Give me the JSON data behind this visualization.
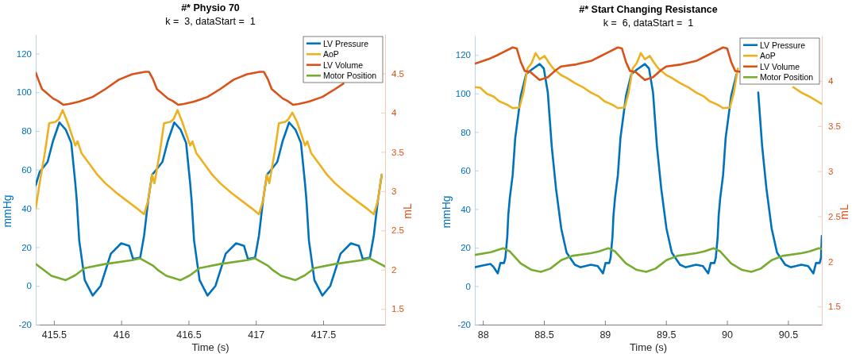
{
  "chart_data": [
    {
      "type": "line",
      "title": "#* Physio 70",
      "subtitle": "k =  3, dataStart =  1",
      "xlabel": "Time (s)",
      "ylabel": "mmHg",
      "y2label": "mL",
      "xlim": [
        415.365,
        417.96
      ],
      "xticks": [
        415.5,
        416,
        416.5,
        417,
        417.5
      ],
      "ylim": [
        -20,
        130
      ],
      "yticks": [
        -20,
        0,
        20,
        40,
        60,
        80,
        100,
        120
      ],
      "y2lim": [
        1.3,
        5
      ],
      "y2ticks": [
        1.5,
        2,
        2.5,
        3,
        3.5,
        4,
        4.5
      ],
      "legend": "top right",
      "series": [
        {
          "name": "LV Pressure",
          "color": "#0072bd",
          "x": [
            415.365,
            415.394,
            415.453,
            415.494,
            415.541,
            415.588,
            415.629,
            415.659,
            415.67,
            415.688,
            415.729,
            415.788,
            415.847,
            415.923,
            416.0,
            416.059,
            416.088,
            416.141,
            416.17,
            416.2,
            416.229,
            416.247,
            416.306,
            416.347,
            416.394,
            416.441,
            416.482,
            416.512,
            416.523,
            416.541,
            416.582,
            416.641,
            416.7,
            416.776,
            416.853,
            416.912,
            416.941,
            416.994,
            417.023,
            417.053,
            417.082,
            417.1,
            417.159,
            417.2,
            417.247,
            417.294,
            417.335,
            417.365,
            417.376,
            417.394,
            417.435,
            417.494,
            417.553,
            417.629,
            417.706,
            417.765,
            417.794,
            417.847,
            417.876,
            417.906,
            417.935
          ],
          "values": [
            52,
            58.8,
            64,
            75,
            84.4,
            80.7,
            73.8,
            53,
            44,
            23.5,
            3,
            -5,
            0,
            16.6,
            22,
            20.7,
            13.9,
            14.6,
            26,
            44,
            57.4,
            58.8,
            64,
            75,
            84.4,
            80.7,
            73.8,
            53,
            44,
            23.5,
            3,
            -5,
            0,
            16.6,
            22,
            20.7,
            13.9,
            14.6,
            26,
            44,
            57.4,
            58.8,
            64,
            75,
            84.4,
            80.7,
            73.8,
            53,
            44,
            23.5,
            3,
            -5,
            0,
            16.6,
            22,
            20.7,
            13.9,
            14.6,
            26,
            44,
            57.4
          ]
        },
        {
          "name": "AoP",
          "color": "#edb120",
          "x": [
            415.365,
            415.394,
            415.435,
            415.465,
            415.512,
            415.535,
            415.565,
            415.6,
            415.659,
            415.676,
            415.706,
            415.765,
            415.823,
            415.882,
            415.965,
            416.041,
            416.117,
            416.17,
            416.2,
            416.229,
            416.247,
            416.288,
            416.318,
            416.365,
            416.388,
            416.418,
            416.453,
            416.512,
            416.529,
            416.559,
            416.618,
            416.676,
            416.735,
            416.818,
            416.894,
            416.97,
            417.023,
            417.053,
            417.082,
            417.1,
            417.141,
            417.171,
            417.218,
            417.241,
            417.271,
            417.306,
            417.365,
            417.382,
            417.412,
            417.471,
            417.529,
            417.588,
            417.671,
            417.747,
            417.823,
            417.876,
            417.906,
            417.935
          ],
          "values": [
            40,
            53,
            69.7,
            84,
            84.7,
            86,
            90.8,
            84.7,
            72.5,
            74.6,
            68.4,
            62.9,
            57.4,
            53,
            48,
            44,
            40,
            37,
            44,
            57.4,
            53,
            69.7,
            84,
            84.7,
            86,
            90.8,
            84.7,
            72.5,
            74.6,
            68.4,
            62.9,
            57.4,
            53,
            48,
            44,
            40,
            37,
            44,
            57.4,
            53,
            69.7,
            84,
            84.7,
            86,
            89.5,
            84.7,
            72.5,
            74.6,
            68.4,
            62.9,
            57.4,
            53,
            48,
            44,
            40,
            37,
            44,
            57.4
          ]
        },
        {
          "name": "LV Volume",
          "color": "#d95319",
          "axis": "y2",
          "x": [
            415.365,
            415.382,
            415.412,
            415.494,
            415.529,
            415.57,
            415.612,
            415.688,
            415.788,
            415.882,
            415.982,
            416.082,
            416.176,
            416.206,
            416.235,
            416.265,
            416.347,
            416.382,
            416.423,
            416.465,
            416.541,
            416.641,
            416.735,
            416.835,
            416.935,
            417.029,
            417.059,
            417.088,
            417.118,
            417.2,
            417.235,
            417.276,
            417.318,
            417.394,
            417.494,
            417.588,
            417.65
          ],
          "values": [
            4.51,
            4.43,
            4.3,
            4.18,
            4.15,
            4.1,
            4.11,
            4.14,
            4.2,
            4.3,
            4.42,
            4.49,
            4.52,
            4.52,
            4.43,
            4.3,
            4.18,
            4.15,
            4.1,
            4.11,
            4.14,
            4.2,
            4.3,
            4.42,
            4.49,
            4.52,
            4.52,
            4.43,
            4.3,
            4.18,
            4.15,
            4.1,
            4.11,
            4.14,
            4.2,
            4.3,
            4.37
          ]
        },
        {
          "name": "Motor Position",
          "color": "#77ac30",
          "x": [
            415.365,
            415.482,
            415.588,
            415.659,
            415.729,
            415.882,
            416.082,
            416.141,
            416.235,
            416.276,
            416.335,
            416.441,
            416.512,
            416.582,
            416.735,
            416.935,
            416.994,
            417.088,
            417.129,
            417.188,
            417.294,
            417.365,
            417.435,
            417.588,
            417.788,
            417.847,
            417.96
          ],
          "values": [
            11.3,
            5.2,
            3,
            5.5,
            9.2,
            11.3,
            13.3,
            14.2,
            10.5,
            8,
            5.2,
            3,
            5.5,
            9.2,
            11.3,
            13.3,
            14.2,
            10.5,
            8,
            5.2,
            3,
            5.5,
            9.2,
            11.3,
            13.3,
            14.2,
            10
          ]
        }
      ]
    },
    {
      "type": "line",
      "title": "#* Start Changing Resistance",
      "subtitle": "k =  6, dataStart =  1",
      "xlabel": "Time (s)",
      "ylabel": "mmHg",
      "y2label": "mL",
      "xlim": [
        87.934,
        90.777
      ],
      "xticks": [
        88,
        88.5,
        89,
        89.5,
        90,
        90.5
      ],
      "ylim": [
        -20,
        130
      ],
      "yticks": [
        -20,
        0,
        20,
        40,
        60,
        80,
        100,
        120
      ],
      "y2lim": [
        1.3,
        4.5
      ],
      "y2ticks": [
        1.5,
        2,
        2.5,
        3,
        3.5,
        4
      ],
      "legend": "top right",
      "series": [
        {
          "name": "LV Pressure",
          "color": "#0072bd",
          "x": [
            87.934,
            87.998,
            88.063,
            88.089,
            88.122,
            88.143,
            88.173,
            88.184,
            88.2,
            88.208,
            88.221,
            88.244,
            88.265,
            88.311,
            88.354,
            88.397,
            88.465,
            88.499,
            88.532,
            88.564,
            88.599,
            88.642,
            88.686,
            88.753,
            88.798,
            88.885,
            88.941,
            88.984,
            89.005,
            89.035,
            89.046,
            89.062,
            89.07,
            89.083,
            89.106,
            89.127,
            89.173,
            89.216,
            89.259,
            89.327,
            89.361,
            89.394,
            89.426,
            89.461,
            89.504,
            89.548,
            89.615,
            89.66,
            89.747,
            89.803,
            89.846,
            89.867,
            89.897,
            89.908,
            89.924,
            89.932,
            89.945,
            89.968,
            89.989,
            90.035,
            90.078,
            90.121,
            90.189,
            90.223,
            90.256,
            90.288,
            90.323,
            90.366,
            90.41,
            90.477,
            90.522,
            90.609,
            90.665,
            90.708,
            90.729,
            90.759,
            90.77,
            90.777
          ],
          "values": [
            9.8,
            10.7,
            11.5,
            9.8,
            6.6,
            12,
            12,
            14.6,
            25.8,
            36.8,
            46,
            57.6,
            76.9,
            99,
            110,
            112.3,
            115.3,
            113,
            100.5,
            72.7,
            50.7,
            29.9,
            17.4,
            11.1,
            9.8,
            11.1,
            10.4,
            6.6,
            12,
            12,
            14.6,
            25.8,
            36.8,
            46,
            57.6,
            76.9,
            99,
            110,
            112.3,
            115.3,
            113,
            100.5,
            72.7,
            50.7,
            29.9,
            17.4,
            11.1,
            9.8,
            11.1,
            10.4,
            6.6,
            12,
            12,
            14.6,
            25.8,
            36.8,
            46,
            57.6,
            76.9,
            99,
            110,
            null,
            null,
            null,
            100.5,
            72.7,
            50.7,
            29.9,
            17.4,
            11.1,
            9.8,
            11.1,
            10.4,
            6.6,
            12,
            12,
            14.6,
            26
          ]
        },
        {
          "name": "AoP",
          "color": "#edb120",
          "x": [
            87.934,
            87.978,
            88.033,
            88.089,
            88.133,
            88.199,
            88.244,
            88.3,
            88.332,
            88.365,
            88.399,
            88.432,
            88.465,
            88.505,
            88.543,
            88.576,
            88.642,
            88.686,
            88.753,
            88.819,
            88.885,
            88.951,
            88.995,
            89.061,
            89.106,
            89.162,
            89.194,
            89.227,
            89.261,
            89.294,
            89.327,
            89.367,
            89.405,
            89.438,
            89.504,
            89.548,
            89.615,
            89.681,
            89.747,
            89.813,
            89.857,
            89.923,
            89.968,
            90.024,
            90.056,
            90.089,
            90.123,
            90.156,
            90.189,
            90.229,
            90.267,
            90.3,
            90.366,
            90.41,
            90.477,
            90.543,
            90.609,
            90.675,
            90.777
          ],
          "values": [
            103.3,
            103,
            99.8,
            98.4,
            96,
            94.2,
            92.4,
            92.7,
            100.5,
            113,
            115.8,
            121,
            117.8,
            119.5,
            115.8,
            113,
            109.5,
            108.1,
            105.4,
            103.3,
            100.5,
            98.4,
            96,
            94.2,
            92.4,
            92.7,
            100.5,
            113,
            115.8,
            121,
            117.8,
            119.5,
            115.8,
            113,
            109.5,
            108.1,
            105.4,
            103.3,
            100.5,
            98.4,
            96,
            94.2,
            92.4,
            92.7,
            100.5,
            113,
            null,
            null,
            null,
            null,
            null,
            null,
            null,
            null,
            null,
            103.3,
            100.5,
            98.4,
            94.6
          ]
        },
        {
          "name": "LV Volume",
          "color": "#d95319",
          "axis": "y2",
          "x": [
            87.934,
            88.044,
            88.112,
            88.155,
            88.244,
            88.277,
            88.31,
            88.343,
            88.388,
            88.421,
            88.465,
            88.532,
            88.598,
            88.642,
            88.753,
            88.885,
            88.974,
            89.017,
            89.106,
            89.139,
            89.172,
            89.205,
            89.25,
            89.283,
            89.327,
            89.394,
            89.46,
            89.504,
            89.615,
            89.747,
            89.836,
            89.879,
            89.968,
            90.001,
            90.034,
            90.067,
            90.112
          ],
          "values": [
            4.19,
            4.24,
            4.28,
            4.31,
            4.37,
            4.36,
            4.21,
            4.11,
            4.1,
            4.06,
            4.01,
            4.04,
            4.12,
            4.16,
            4.18,
            4.22,
            4.28,
            4.31,
            4.37,
            4.36,
            4.21,
            4.11,
            4.1,
            4.06,
            4.01,
            4.04,
            4.12,
            4.16,
            4.18,
            4.22,
            4.28,
            4.31,
            4.37,
            4.36,
            4.21,
            4.11,
            4.1
          ]
        },
        {
          "name": "Motor Position",
          "color": "#77ac30",
          "x": [
            87.934,
            88.065,
            88.166,
            88.221,
            88.31,
            88.399,
            88.476,
            88.553,
            88.642,
            88.731,
            88.885,
            88.952,
            89.028,
            89.083,
            89.172,
            89.261,
            89.338,
            89.415,
            89.504,
            89.593,
            89.747,
            89.814,
            89.89,
            89.945,
            90.034,
            90.123,
            90.2,
            90.277,
            90.366,
            90.455,
            90.609,
            90.676,
            90.752,
            90.777
          ],
          "values": [
            16.2,
            17.6,
            19.7,
            18,
            11.8,
            8.4,
            7.4,
            9.1,
            13.5,
            15.7,
            17.1,
            18,
            19.7,
            18,
            11.8,
            8.4,
            7.4,
            9.1,
            13.5,
            15.7,
            17.1,
            18,
            19.7,
            18,
            11.8,
            8.4,
            7.4,
            9.1,
            13.5,
            15.7,
            17.1,
            18,
            19.7,
            19.3
          ]
        }
      ]
    }
  ]
}
